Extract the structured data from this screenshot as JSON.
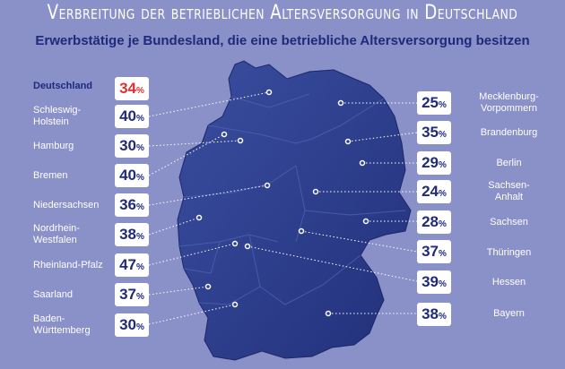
{
  "title": "Verbreitung der betrieblichen Altersversorgung in Deutschland",
  "subtitle": "Erwerbstätige je Bundesland, die eine betriebliche Altersversorgung besitzen",
  "percent_sign": "%",
  "colors": {
    "background": "#8a90c8",
    "map": "#2d3f90",
    "highlight": "#e03030",
    "text_dark": "#1f2a7a"
  },
  "left": [
    {
      "name": "Deutschland",
      "value": "34"
    },
    {
      "name": "Schleswig-\nHolstein",
      "value": "40"
    },
    {
      "name": "Hamburg",
      "value": "30"
    },
    {
      "name": "Bremen",
      "value": "40"
    },
    {
      "name": "Niedersachsen",
      "value": "36"
    },
    {
      "name": "Nordrhein-\nWestfalen",
      "value": "38"
    },
    {
      "name": "Rheinland-Pfalz",
      "value": "47"
    },
    {
      "name": "Saarland",
      "value": "37"
    },
    {
      "name": "Baden-\nWürttemberg",
      "value": "30"
    }
  ],
  "right": [
    {
      "name": "Mecklenburg-\nVorpommern",
      "value": "25"
    },
    {
      "name": "Brandenburg",
      "value": "35"
    },
    {
      "name": "Berlin",
      "value": "29"
    },
    {
      "name": "Sachsen-\nAnhalt",
      "value": "24"
    },
    {
      "name": "Sachsen",
      "value": "28"
    },
    {
      "name": "Thüringen",
      "value": "37"
    },
    {
      "name": "Hessen",
      "value": "39"
    },
    {
      "name": "Bayern",
      "value": "38"
    }
  ]
}
